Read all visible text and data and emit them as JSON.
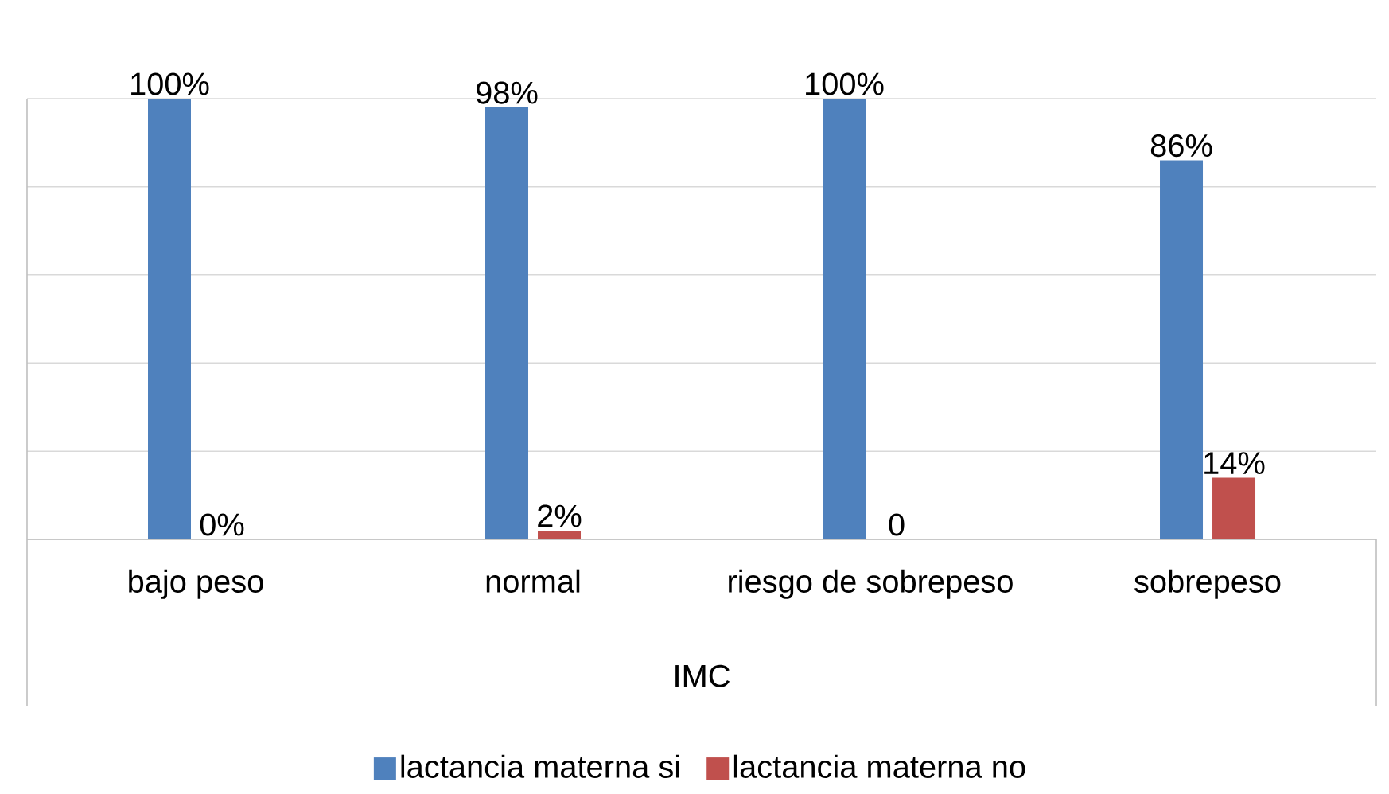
{
  "chart_data": {
    "type": "bar",
    "xlabel": "IMC",
    "categories": [
      "bajo peso",
      "normal",
      "riesgo de sobrepeso",
      "sobrepeso"
    ],
    "series": [
      {
        "name": "lactancia materna si",
        "color": "#4f81bd",
        "values": [
          100,
          98,
          100,
          86
        ],
        "value_labels": [
          "100%",
          "98%",
          "100%",
          "86%"
        ]
      },
      {
        "name": "lactancia materna no",
        "color": "#c0504d",
        "values": [
          0,
          2,
          0,
          14
        ],
        "value_labels": [
          "0%",
          "2%",
          "0",
          "14%"
        ]
      }
    ],
    "ylim": [
      0,
      100
    ],
    "yticks": [
      {
        "value": 0,
        "label": null
      },
      {
        "value": 20,
        "label": null
      },
      {
        "value": 40,
        "label": null
      },
      {
        "value": 60,
        "label": null
      },
      {
        "value": 80,
        "label": null
      },
      {
        "value": 100,
        "label": null
      }
    ],
    "grid": "y",
    "legend": "bottom",
    "tick_labels": "x"
  }
}
